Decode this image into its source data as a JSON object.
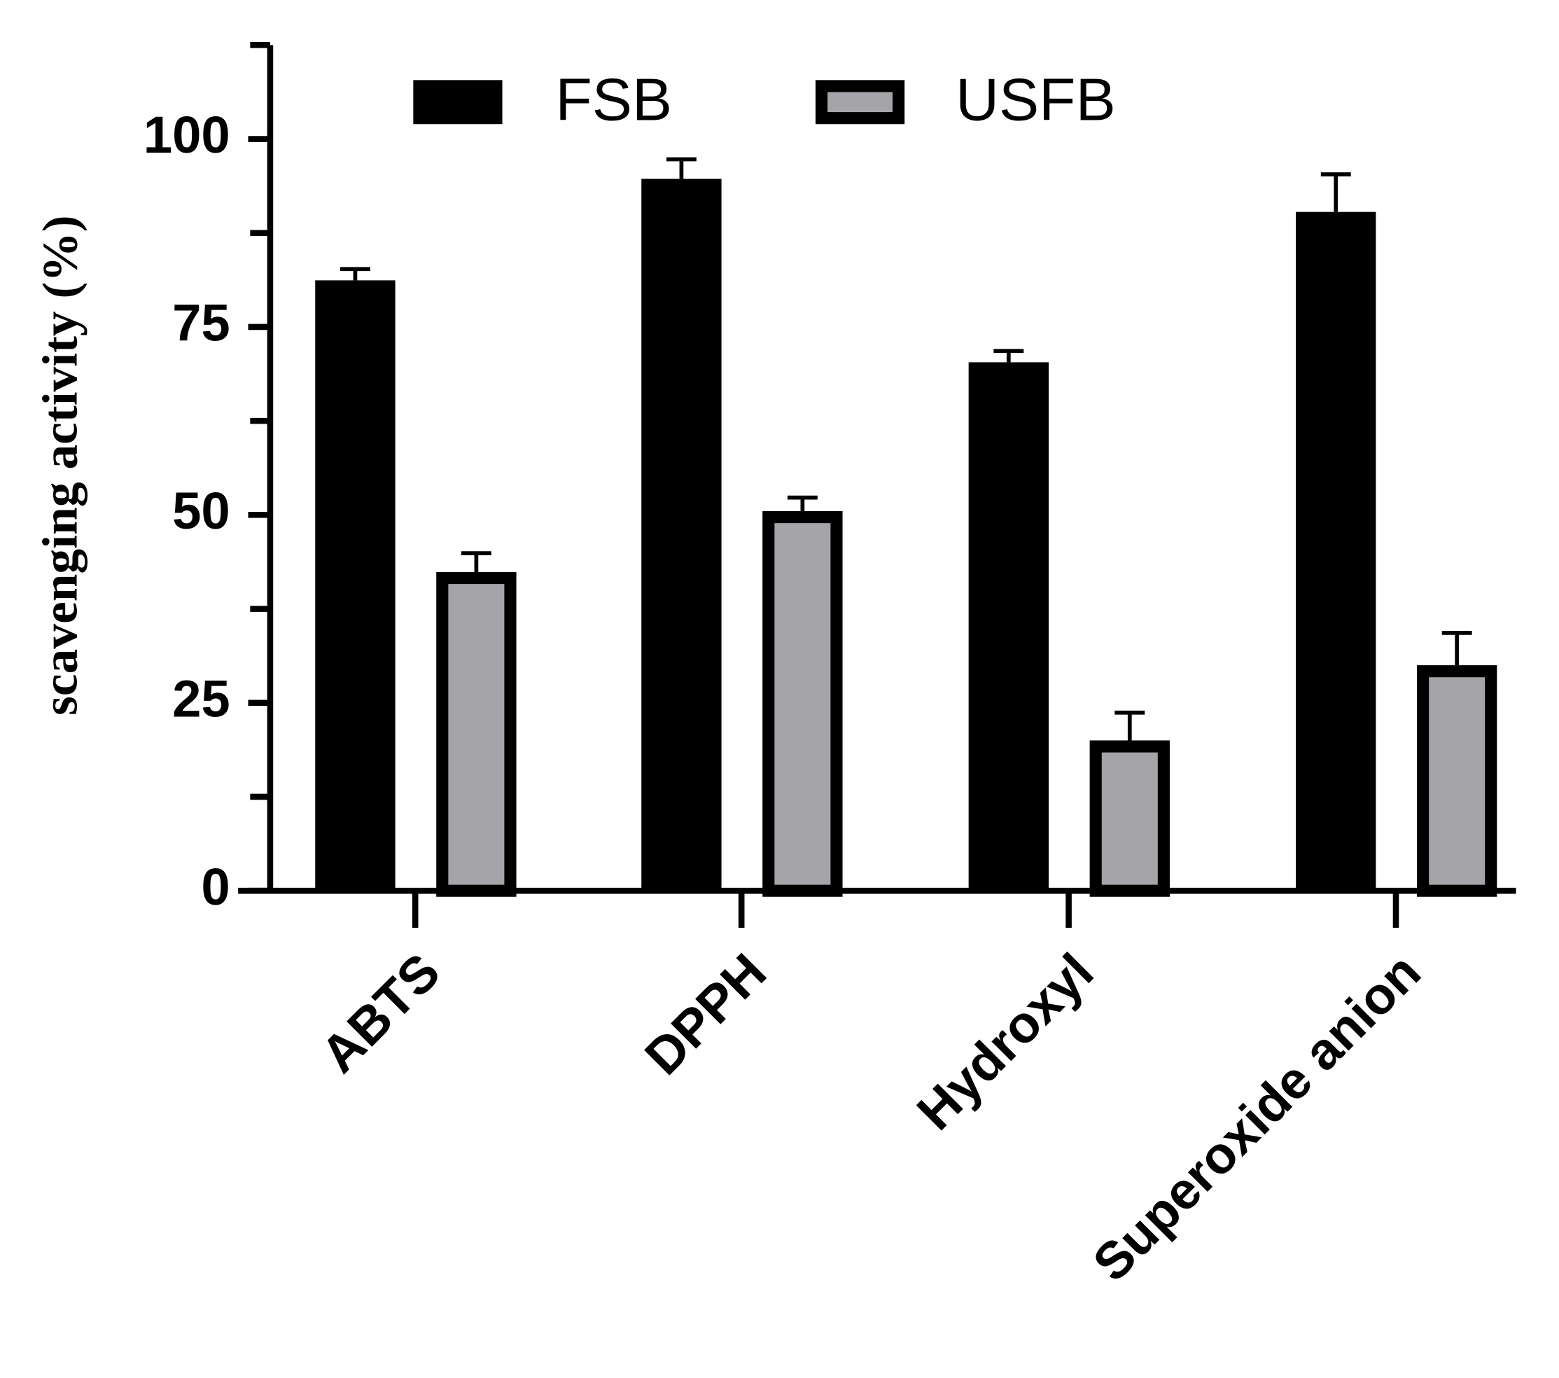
{
  "chart_data": {
    "type": "bar",
    "y_label": "scavenging activity (%)",
    "categories": [
      "ABTS",
      "DPPH",
      "Hydroxyl",
      "Superoxide anion"
    ],
    "series": [
      {
        "name": "FSB",
        "color": "#000000",
        "values": [
          81.2,
          94.7,
          70.3,
          90.3
        ],
        "errors": [
          1.5,
          2.6,
          1.5,
          5.0
        ]
      },
      {
        "name": "USFB",
        "color": "#a5a4a8",
        "values": [
          42.4,
          50.5,
          20.0,
          30.0
        ],
        "errors": [
          2.5,
          1.8,
          3.7,
          4.3
        ]
      }
    ],
    "ylim": [
      0,
      112.5
    ],
    "yticks": [
      0,
      25,
      50,
      75,
      100
    ],
    "yminorticks": [
      12.5,
      37.5,
      62.5,
      87.5,
      112.5
    ],
    "grid": false,
    "legend": "top"
  }
}
